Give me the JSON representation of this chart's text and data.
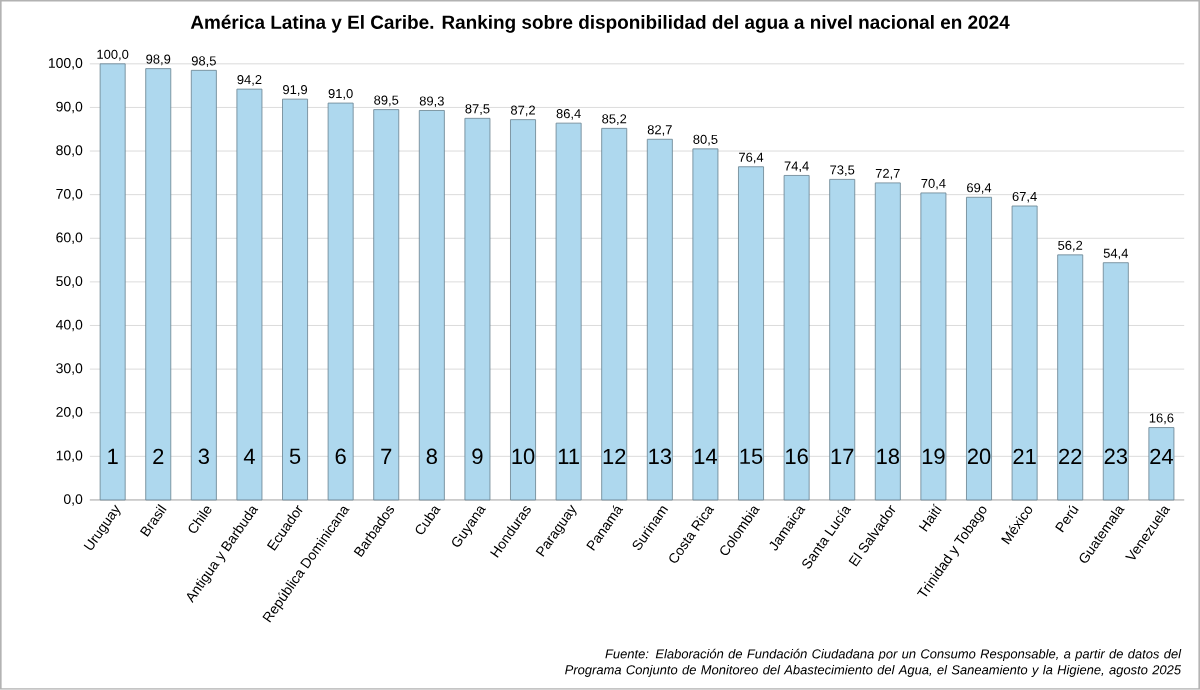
{
  "chart_data": {
    "type": "bar",
    "title": "América Latina y El Caribe. Ranking sobre disponibilidad del agua a nivel nacional en 2024",
    "categories": [
      "Uruguay",
      "Brasil",
      "Chile",
      "Antigua y Barbuda",
      "Ecuador",
      "República Dominicana",
      "Barbados",
      "Cuba",
      "Guyana",
      "Honduras",
      "Paraguay",
      "Panamá",
      "Surinam",
      "Costa Rica",
      "Colombia",
      "Jamaica",
      "Santa Lucía",
      "El Salvador",
      "Haití",
      "Trinidad y Tobago",
      "México",
      "Perú",
      "Guatemala",
      "Venezuela"
    ],
    "values": [
      100.0,
      98.9,
      98.5,
      94.2,
      91.9,
      91.0,
      89.5,
      89.3,
      87.5,
      87.2,
      86.4,
      85.2,
      82.7,
      80.5,
      76.4,
      74.4,
      73.5,
      72.7,
      70.4,
      69.4,
      67.4,
      56.2,
      54.4,
      16.6
    ],
    "value_labels": [
      "100,0",
      "98,9",
      "98,5",
      "94,2",
      "91,9",
      "91,0",
      "89,5",
      "89,3",
      "87,5",
      "87,2",
      "86,4",
      "85,2",
      "82,7",
      "80,5",
      "76,4",
      "74,4",
      "73,5",
      "72,7",
      "70,4",
      "69,4",
      "67,4",
      "56,2",
      "54,4",
      "16,6"
    ],
    "color": "#aed8ee",
    "ylim": [
      0,
      100
    ],
    "yticks": [
      {
        "value": 0,
        "label": "0,0"
      },
      {
        "value": 10,
        "label": "10,0"
      },
      {
        "value": 20,
        "label": "20,0"
      },
      {
        "value": 30,
        "label": "30,0"
      },
      {
        "value": 40,
        "label": "40,0"
      },
      {
        "value": 50,
        "label": "50,0"
      },
      {
        "value": 60,
        "label": "60,0"
      },
      {
        "value": 70,
        "label": "70,0"
      },
      {
        "value": 80,
        "label": "80,0"
      },
      {
        "value": 90,
        "label": "90,0"
      },
      {
        "value": 100,
        "label": "100,0"
      }
    ],
    "grid": "y",
    "annotations": [
      {
        "text": "1",
        "x": "Uruguay"
      },
      {
        "text": "2",
        "x": "Brasil"
      },
      {
        "text": "3",
        "x": "Chile"
      },
      {
        "text": "4",
        "x": "Antigua y Barbuda"
      },
      {
        "text": "5",
        "x": "Ecuador"
      },
      {
        "text": "6",
        "x": "República Dominicana"
      },
      {
        "text": "7",
        "x": "Barbados"
      },
      {
        "text": "8",
        "x": "Cuba"
      },
      {
        "text": "9",
        "x": "Guyana"
      },
      {
        "text": "10",
        "x": "Honduras"
      },
      {
        "text": "11",
        "x": "Paraguay"
      },
      {
        "text": "12",
        "x": "Panamá"
      },
      {
        "text": "13",
        "x": "Surinam"
      },
      {
        "text": "14",
        "x": "Costa Rica"
      },
      {
        "text": "15",
        "x": "Colombia"
      },
      {
        "text": "16",
        "x": "Jamaica"
      },
      {
        "text": "17",
        "x": "Santa Lucía"
      },
      {
        "text": "18",
        "x": "El Salvador"
      },
      {
        "text": "19",
        "x": "Haití"
      },
      {
        "text": "20",
        "x": "Trinidad y Tobago"
      },
      {
        "text": "21",
        "x": "México"
      },
      {
        "text": "22",
        "x": "Perú"
      },
      {
        "text": "23",
        "x": "Guatemala"
      },
      {
        "text": "24",
        "x": "Venezuela"
      },
      "Fuente: Elaboración de Fundación Ciudadana por un Consumo Responsable, a partir de datos del Programa Conjunto de Monitoreo del Abastecimiento del Agua, el Saneamiento y la Higiene, agosto 2025"
    ]
  }
}
